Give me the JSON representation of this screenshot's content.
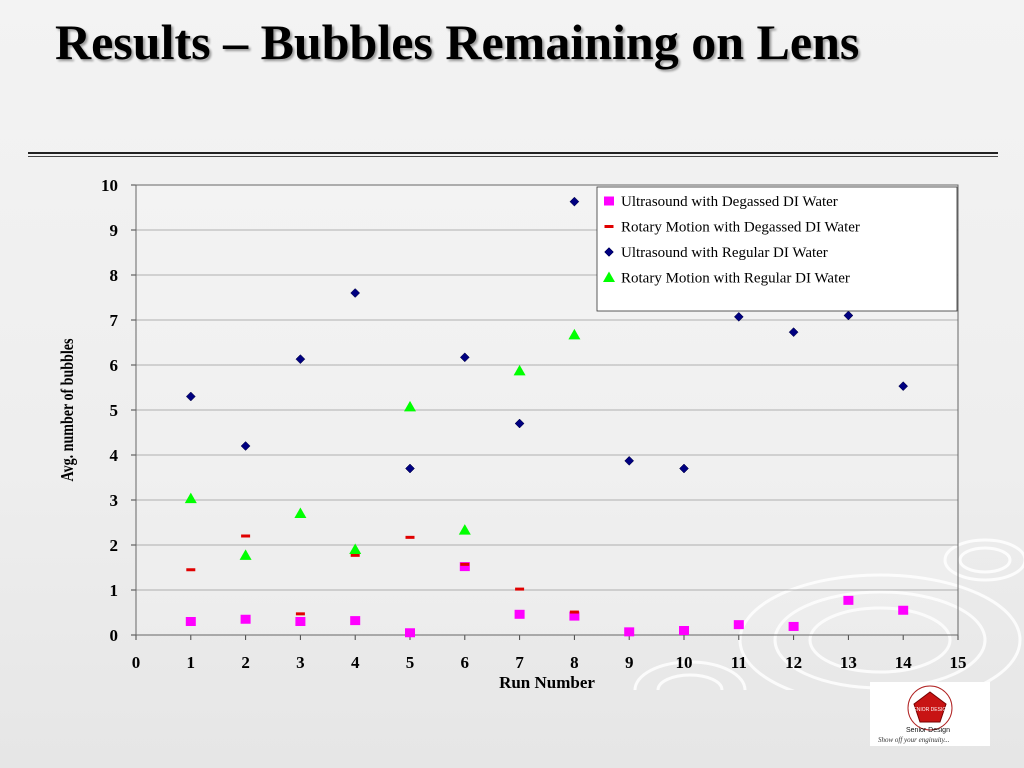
{
  "slide": {
    "title": "Results – Bubbles Remaining on Lens"
  },
  "logo": {
    "caption": "Show off your enginuity...",
    "subtitle": "Senior Design",
    "ring_text": "SENIOR DESIGN"
  },
  "chart_data": {
    "type": "scatter",
    "title": "",
    "xlabel": "Run Number",
    "ylabel": "Avg. number of bubbles",
    "xlim": [
      0,
      15
    ],
    "ylim": [
      0,
      10
    ],
    "xticks": [
      0,
      1,
      2,
      3,
      4,
      5,
      6,
      7,
      8,
      9,
      10,
      11,
      12,
      13,
      14,
      15
    ],
    "yticks": [
      0,
      1,
      2,
      3,
      4,
      5,
      6,
      7,
      8,
      9,
      10
    ],
    "grid": "horizontal",
    "legend_position": "top-right",
    "series": [
      {
        "name": "Ultrasound with Degassed DI Water",
        "marker": "square",
        "color": "#ff00ff",
        "x": [
          1,
          2,
          3,
          4,
          5,
          6,
          7,
          8,
          9,
          10,
          11,
          12,
          13,
          14
        ],
        "y": [
          0.3,
          0.35,
          0.3,
          0.32,
          0.05,
          1.52,
          0.46,
          0.42,
          0.07,
          0.1,
          0.23,
          0.19,
          0.77,
          0.55
        ]
      },
      {
        "name": "Rotary Motion with Degassed DI Water",
        "marker": "dash",
        "color": "#e00000",
        "x": [
          1,
          2,
          3,
          4,
          5,
          6,
          7,
          8
        ],
        "y": [
          1.45,
          2.2,
          0.47,
          1.77,
          2.17,
          1.57,
          1.02,
          0.51
        ]
      },
      {
        "name": "Ultrasound with Regular DI Water",
        "marker": "diamond",
        "color": "#000080",
        "x": [
          1,
          2,
          3,
          4,
          5,
          6,
          7,
          8,
          9,
          10,
          11,
          12,
          13,
          14
        ],
        "y": [
          5.3,
          4.2,
          6.13,
          7.6,
          3.7,
          6.17,
          4.7,
          9.63,
          3.87,
          3.7,
          7.07,
          6.73,
          7.1,
          5.53
        ]
      },
      {
        "name": "Rotary Motion with Regular DI Water",
        "marker": "triangle",
        "color": "#00ff00",
        "x": [
          1,
          2,
          3,
          4,
          5,
          6,
          7,
          8
        ],
        "y": [
          3.03,
          1.77,
          2.7,
          1.9,
          5.07,
          2.33,
          5.87,
          6.67
        ]
      }
    ]
  }
}
